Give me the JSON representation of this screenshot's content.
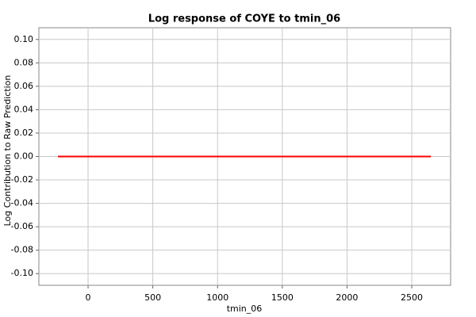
{
  "chart_data": {
    "type": "line",
    "title": "Log response of COYE to tmin_06",
    "x_label": "tmin_06",
    "y_label": "Log Contribution to Raw Prediction",
    "x": [
      -233,
      2647
    ],
    "series": [
      {
        "color": "#ff0000",
        "values": [
          0,
          0
        ]
      }
    ],
    "xlim": [
      -380,
      2800
    ],
    "xticks": [
      0,
      500,
      1000,
      1500,
      2000,
      2500
    ],
    "ylim": [
      -0.11,
      0.11
    ],
    "yticks": [
      {
        "value": 0.1,
        "label": "0.10"
      },
      0.08,
      0.06,
      0.04,
      0.02,
      {
        "value": 0,
        "label": "0.00"
      },
      -0.02,
      -0.04,
      -0.06,
      -0.08,
      {
        "value": -0.1,
        "label": "-0.10"
      }
    ],
    "grid": true
  }
}
